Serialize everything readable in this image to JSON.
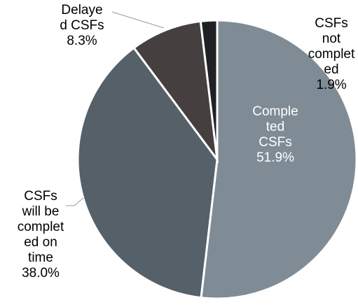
{
  "chart_data": {
    "type": "pie",
    "categories": [
      "Completed CSFs",
      "CSFs will be completed on time",
      "Delayed CSFs",
      "CSFs not completed"
    ],
    "values": [
      51.9,
      38.0,
      8.3,
      1.9
    ],
    "value_labels": [
      "51.9%",
      "38.0%",
      "8.3%",
      "1.9%"
    ],
    "colors": [
      "#7f8c95",
      "#566069",
      "#453f40",
      "#1f2124"
    ],
    "label_colors": [
      "#ffffff",
      "#000000",
      "#000000",
      "#000000"
    ]
  }
}
